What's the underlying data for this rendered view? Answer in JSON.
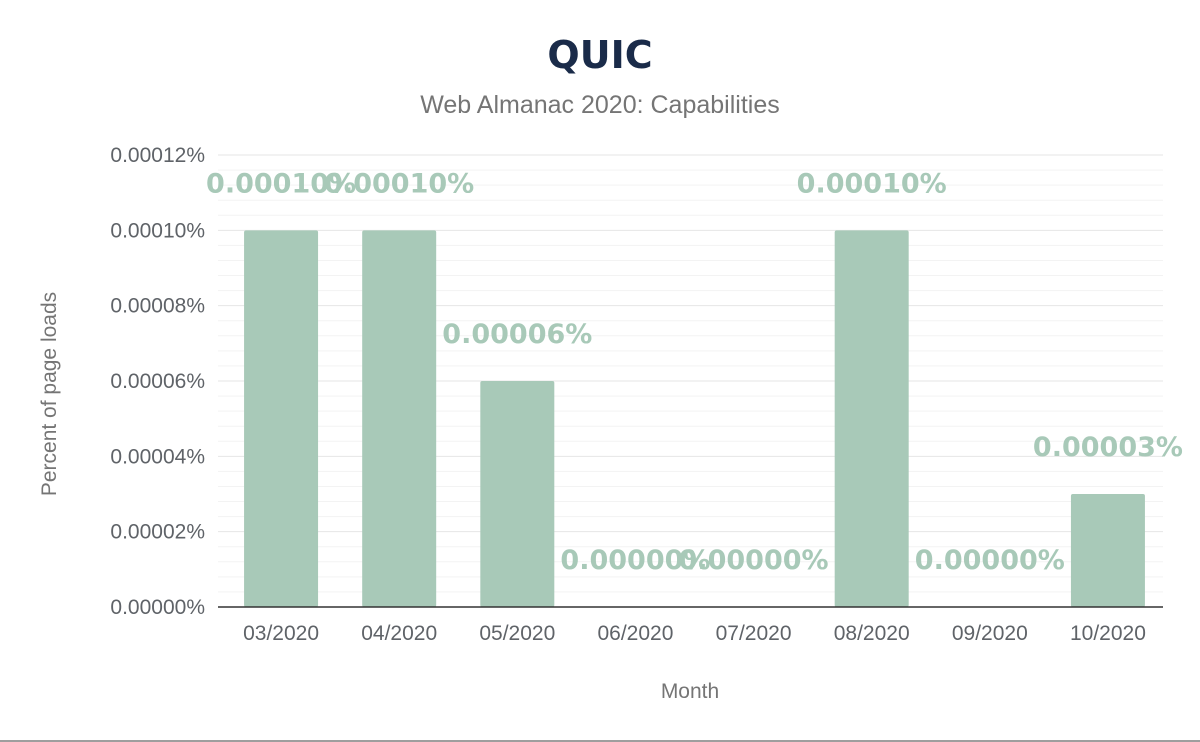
{
  "chart_data": {
    "type": "bar",
    "title": "QUIC",
    "subtitle": "Web Almanac 2020: Capabilities",
    "xlabel": "Month",
    "ylabel": "Percent of page loads",
    "categories": [
      "03/2020",
      "04/2020",
      "05/2020",
      "06/2020",
      "07/2020",
      "08/2020",
      "09/2020",
      "10/2020"
    ],
    "values": [
      0.0001,
      0.0001,
      6e-05,
      0,
      0,
      0.0001,
      0,
      3e-05
    ],
    "data_labels": [
      "0.00010%",
      "0.00010%",
      "0.00006%",
      "0.00000%",
      "0.00000%",
      "0.00010%",
      "0.00000%",
      "0.00003%"
    ],
    "ylim": [
      0,
      0.00012
    ],
    "yticks": [
      0,
      2e-05,
      4e-05,
      6e-05,
      8e-05,
      0.0001,
      0.00012
    ],
    "ytick_labels": [
      "0.00000%",
      "0.00002%",
      "0.00004%",
      "0.00006%",
      "0.00008%",
      "0.00010%",
      "0.00012%"
    ],
    "grid": true,
    "legend": "none",
    "colors": {
      "bar": "#a8c9b8",
      "data_label": "#a8c9b8",
      "title": "#1a2b49"
    }
  }
}
